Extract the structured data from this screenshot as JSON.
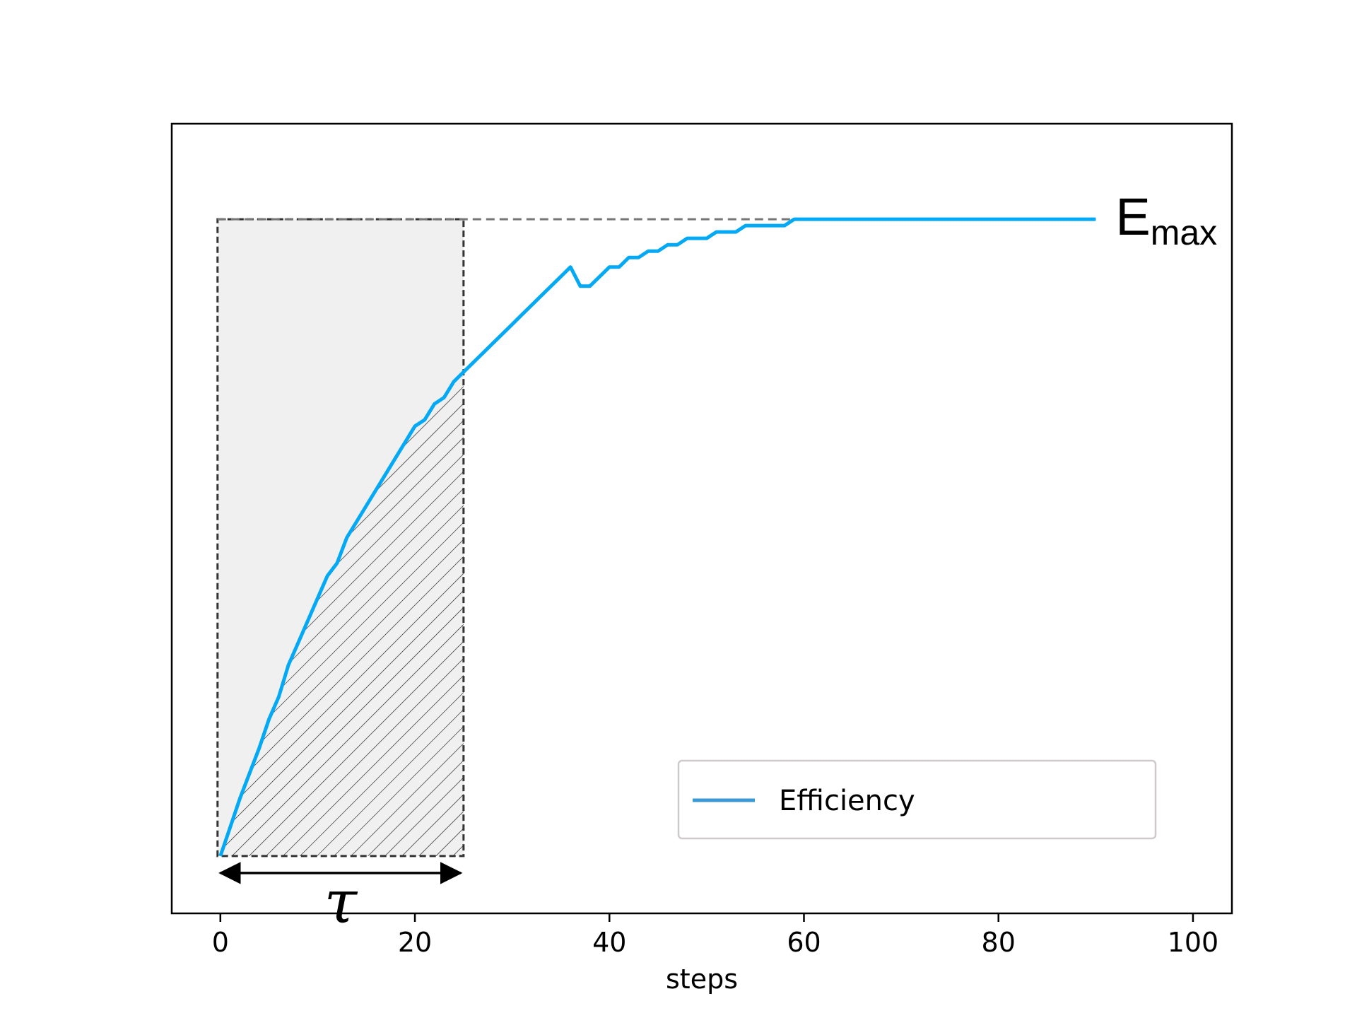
{
  "chart_data": {
    "type": "line",
    "title": "",
    "xlabel": "steps",
    "ylabel": "",
    "xlim": [
      -5,
      104
    ],
    "ylim": [
      -0.09,
      1.15
    ],
    "xticks": [
      0,
      20,
      40,
      60,
      80,
      100
    ],
    "yticks": [],
    "grid": false,
    "legend": {
      "position": "lower-right"
    },
    "series": [
      {
        "name": "Efficiency",
        "color": "#03a9f4",
        "legend_color": "#3a98d6",
        "x": [
          0,
          1,
          2,
          3,
          4,
          5,
          6,
          7,
          8,
          9,
          10,
          11,
          12,
          13,
          14,
          15,
          16,
          17,
          18,
          19,
          20,
          21,
          22,
          23,
          24,
          25,
          26,
          27,
          28,
          29,
          30,
          31,
          32,
          33,
          34,
          35,
          36,
          37,
          38,
          39,
          40,
          41,
          42,
          43,
          44,
          45,
          46,
          47,
          48,
          49,
          50,
          51,
          52,
          53,
          54,
          55,
          56,
          57,
          58,
          59,
          60,
          70,
          80,
          90
        ],
        "y": [
          0,
          0.045,
          0.09,
          0.13,
          0.17,
          0.215,
          0.25,
          0.3,
          0.335,
          0.37,
          0.405,
          0.44,
          0.46,
          0.5,
          0.525,
          0.55,
          0.575,
          0.6,
          0.625,
          0.65,
          0.675,
          0.685,
          0.71,
          0.72,
          0.745,
          0.76,
          0.775,
          0.79,
          0.805,
          0.82,
          0.835,
          0.85,
          0.865,
          0.88,
          0.895,
          0.91,
          0.925,
          0.895,
          0.895,
          0.91,
          0.925,
          0.925,
          0.94,
          0.94,
          0.95,
          0.95,
          0.96,
          0.96,
          0.97,
          0.97,
          0.97,
          0.98,
          0.98,
          0.98,
          0.99,
          0.99,
          0.99,
          0.99,
          0.99,
          1.0,
          1.0,
          1.0,
          1.0,
          1.0
        ]
      }
    ],
    "reference_line": {
      "y": 1.0,
      "x": [
        0,
        90
      ],
      "style": "dashed",
      "color": "#777777"
    },
    "shaded_region": {
      "x": [
        0,
        25
      ],
      "y": [
        0,
        1.0
      ],
      "fill": "#f0f0f0",
      "border": "dashed",
      "hatch_under_curve": true
    },
    "annotations": [
      {
        "id": "emax",
        "text": "E",
        "subscript": "max"
      },
      {
        "id": "tau",
        "text": "τ"
      }
    ]
  }
}
